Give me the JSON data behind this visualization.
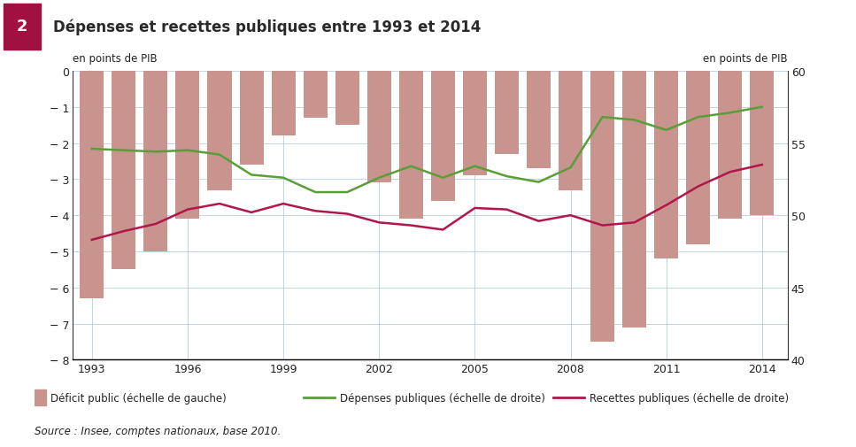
{
  "years": [
    1993,
    1994,
    1995,
    1996,
    1997,
    1998,
    1999,
    2000,
    2001,
    2002,
    2003,
    2004,
    2005,
    2006,
    2007,
    2008,
    2009,
    2010,
    2011,
    2012,
    2013,
    2014
  ],
  "deficit": [
    -6.3,
    -5.5,
    -5.0,
    -4.1,
    -3.3,
    -2.6,
    -1.8,
    -1.3,
    -1.5,
    -3.1,
    -4.1,
    -3.6,
    -2.9,
    -2.3,
    -2.7,
    -3.3,
    -7.5,
    -7.1,
    -5.2,
    -4.8,
    -4.1,
    -4.0
  ],
  "depenses": [
    54.6,
    54.5,
    54.4,
    54.5,
    54.2,
    52.8,
    52.6,
    51.6,
    51.6,
    52.6,
    53.4,
    52.6,
    53.4,
    52.7,
    52.3,
    53.3,
    56.8,
    56.6,
    55.9,
    56.8,
    57.1,
    57.5
  ],
  "recettes": [
    48.3,
    48.9,
    49.4,
    50.4,
    50.8,
    50.2,
    50.8,
    50.3,
    50.1,
    49.5,
    49.3,
    49.0,
    50.5,
    50.4,
    49.6,
    50.0,
    49.3,
    49.5,
    50.7,
    52.0,
    53.0,
    53.5
  ],
  "title": "Dépenses et recettes publiques entre 1993 et 2014",
  "title_number": "2",
  "ylabel_left": "en points de PIB",
  "ylabel_right": "en points de PIB",
  "ylim_left": [
    -8,
    0
  ],
  "ylim_right": [
    40,
    60
  ],
  "yticks_left": [
    0,
    -1,
    -2,
    -3,
    -4,
    -5,
    -6,
    -7,
    -8
  ],
  "yticks_right": [
    40,
    45,
    50,
    55,
    60
  ],
  "ytick_labels_left": [
    "0",
    "− 1",
    "− 2",
    "− 3",
    "− 4",
    "− 5",
    "− 6",
    "− 7",
    "− 8"
  ],
  "ytick_labels_right": [
    "40",
    "45",
    "50",
    "55",
    "60"
  ],
  "bar_color": "#c9948e",
  "depenses_color": "#5a9e3a",
  "recettes_color": "#b0174a",
  "source": "Source : Insee, comptes nationaux, base 2010.",
  "legend_deficit": "Déficit public (échelle de gauche)",
  "legend_depenses": "Dépenses publiques (échelle de droite)",
  "legend_recettes": "Recettes publiques (échelle de droite)",
  "background_color": "#ffffff",
  "header_bg_color": "#faf0e0",
  "header_num_color": "#a01040",
  "grid_color": "#b8cfe0",
  "xticks": [
    1993,
    1996,
    1999,
    2002,
    2005,
    2008,
    2011,
    2014
  ]
}
